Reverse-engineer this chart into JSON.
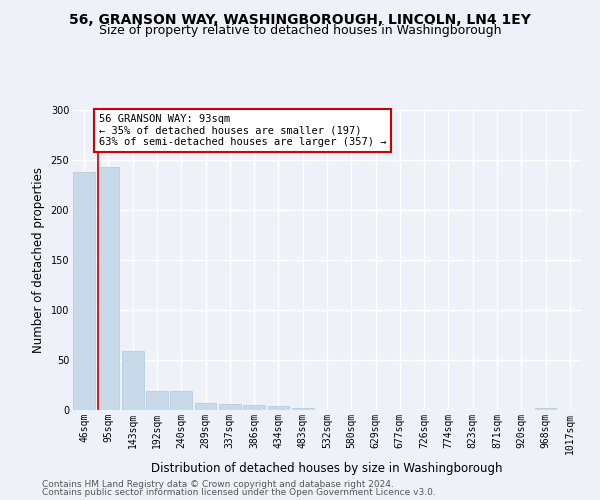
{
  "title": "56, GRANSON WAY, WASHINGBOROUGH, LINCOLN, LN4 1EY",
  "subtitle": "Size of property relative to detached houses in Washingborough",
  "xlabel": "Distribution of detached houses by size in Washingborough",
  "ylabel": "Number of detached properties",
  "bin_labels": [
    "46sqm",
    "95sqm",
    "143sqm",
    "192sqm",
    "240sqm",
    "289sqm",
    "337sqm",
    "386sqm",
    "434sqm",
    "483sqm",
    "532sqm",
    "580sqm",
    "629sqm",
    "677sqm",
    "726sqm",
    "774sqm",
    "823sqm",
    "871sqm",
    "920sqm",
    "968sqm",
    "1017sqm"
  ],
  "bar_heights": [
    238,
    243,
    59,
    19,
    19,
    7,
    6,
    5,
    4,
    2,
    0,
    0,
    0,
    0,
    0,
    0,
    0,
    0,
    0,
    2,
    0
  ],
  "bar_color": "#c8daea",
  "bar_edgecolor": "#aec8dc",
  "vline_color": "#cc0000",
  "annotation_text": "56 GRANSON WAY: 93sqm\n← 35% of detached houses are smaller (197)\n63% of semi-detached houses are larger (357) →",
  "annotation_box_color": "white",
  "annotation_box_edgecolor": "#cc0000",
  "ylim": [
    0,
    300
  ],
  "yticks": [
    0,
    50,
    100,
    150,
    200,
    250,
    300
  ],
  "footer_line1": "Contains HM Land Registry data © Crown copyright and database right 2024.",
  "footer_line2": "Contains public sector information licensed under the Open Government Licence v3.0.",
  "background_color": "#eef2f8",
  "grid_color": "white",
  "title_fontsize": 10,
  "subtitle_fontsize": 9,
  "axis_label_fontsize": 8.5,
  "tick_fontsize": 7,
  "annotation_fontsize": 7.5,
  "footer_fontsize": 6.5
}
